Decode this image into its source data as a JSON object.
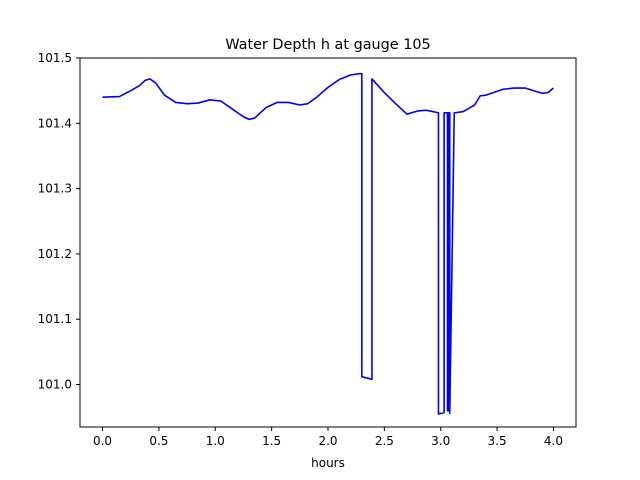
{
  "chart_data": {
    "type": "line",
    "title": "Water Depth h at gauge 105",
    "xlabel": "hours",
    "ylabel": "",
    "xlim": [
      -0.2,
      4.2
    ],
    "ylim": [
      100.935,
      101.5
    ],
    "x_ticks": [
      0.0,
      0.5,
      1.0,
      1.5,
      2.0,
      2.5,
      3.0,
      3.5,
      4.0
    ],
    "x_tick_labels": [
      "0.0",
      "0.5",
      "1.0",
      "1.5",
      "2.0",
      "2.5",
      "3.0",
      "3.5",
      "4.0"
    ],
    "y_ticks": [
      101.0,
      101.1,
      101.2,
      101.3,
      101.4,
      101.5
    ],
    "y_tick_labels": [
      "101.0",
      "101.1",
      "101.2",
      "101.3",
      "101.4",
      "101.5"
    ],
    "grid": false,
    "legend": "none",
    "series": [
      {
        "color": "#0000ff",
        "x": [
          0.0,
          0.15,
          0.25,
          0.33,
          0.38,
          0.42,
          0.47,
          0.55,
          0.65,
          0.75,
          0.85,
          0.95,
          1.05,
          1.15,
          1.25,
          1.3,
          1.35,
          1.45,
          1.55,
          1.65,
          1.75,
          1.82,
          1.9,
          2.0,
          2.1,
          2.2,
          2.28,
          2.3,
          2.3,
          2.39,
          2.39,
          2.4,
          2.5,
          2.6,
          2.7,
          2.8,
          2.87,
          2.93,
          2.98,
          2.98,
          3.03,
          3.03,
          3.06,
          3.06,
          3.07,
          3.07,
          3.08,
          3.08,
          3.12,
          3.2,
          3.3,
          3.35,
          3.4,
          3.45,
          3.55,
          3.65,
          3.75,
          3.82,
          3.9,
          3.95,
          4.0
        ],
        "y": [
          101.44,
          101.441,
          101.45,
          101.458,
          101.466,
          101.468,
          101.462,
          101.443,
          101.432,
          101.43,
          101.431,
          101.436,
          101.434,
          101.422,
          101.41,
          101.406,
          101.408,
          101.424,
          101.432,
          101.432,
          101.428,
          101.43,
          101.44,
          101.455,
          101.467,
          101.474,
          101.476,
          101.476,
          101.012,
          101.008,
          101.468,
          101.466,
          101.447,
          101.43,
          101.414,
          101.419,
          101.42,
          101.418,
          101.416,
          100.955,
          100.957,
          101.416,
          101.416,
          100.96,
          100.96,
          101.416,
          101.416,
          100.956,
          101.416,
          101.418,
          101.428,
          101.442,
          101.443,
          101.446,
          101.452,
          101.454,
          101.454,
          101.45,
          101.446,
          101.447,
          101.454
        ]
      }
    ]
  }
}
